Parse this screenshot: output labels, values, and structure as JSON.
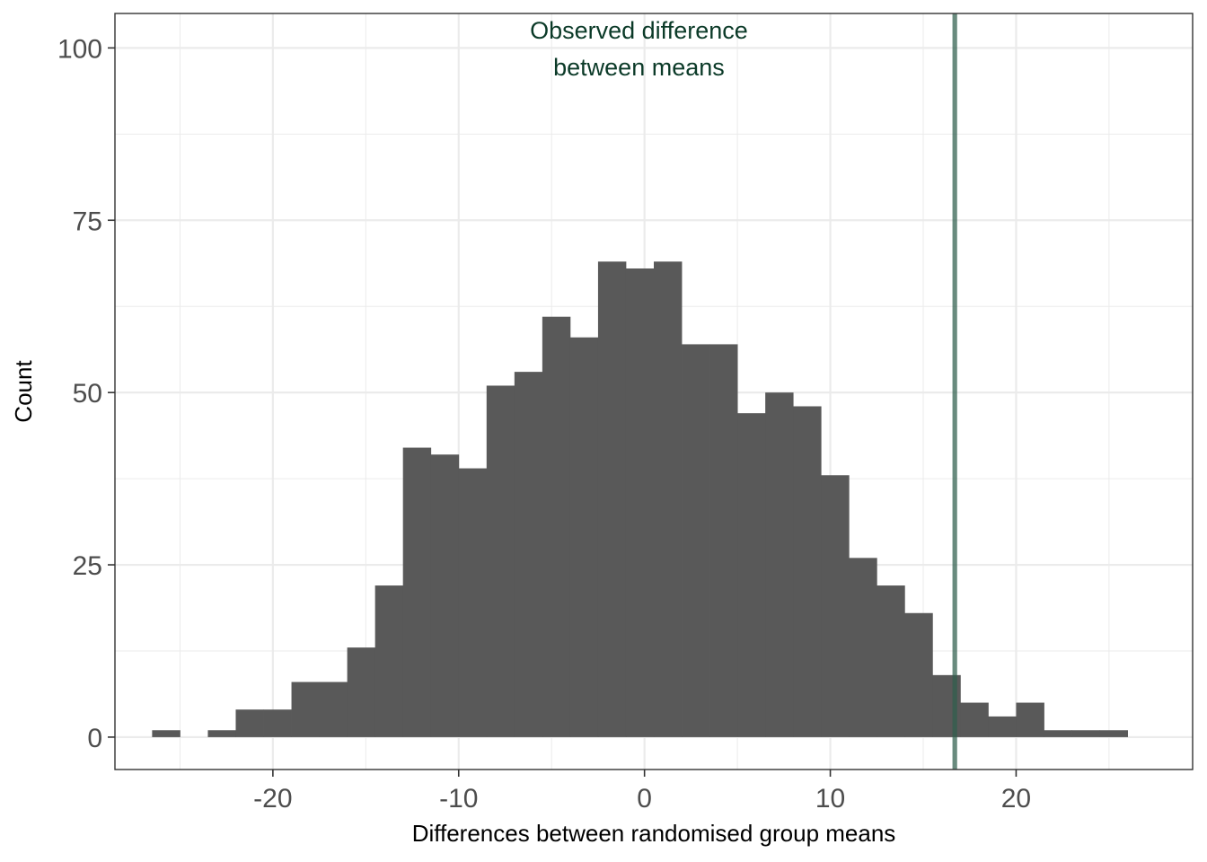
{
  "chart_data": {
    "type": "bar",
    "subtype": "histogram",
    "xlabel": "Differences between randomised group means",
    "ylabel": "Count",
    "xlim": [
      -28.5,
      29.5
    ],
    "ylim": [
      -4.7,
      105
    ],
    "x_ticks": [
      -20,
      -10,
      0,
      10,
      20
    ],
    "x_tick_labels": [
      "-20",
      "-10",
      "0",
      "10",
      "20"
    ],
    "y_ticks": [
      0,
      25,
      50,
      75,
      100
    ],
    "y_tick_labels": [
      "0",
      "25",
      "50",
      "75",
      "100"
    ],
    "grid": true,
    "bin_width": 1.5,
    "bins": [
      {
        "x0": -26.5,
        "x1": -25.0,
        "count": 1
      },
      {
        "x0": -25.0,
        "x1": -23.5,
        "count": 0
      },
      {
        "x0": -23.5,
        "x1": -22.0,
        "count": 1
      },
      {
        "x0": -22.0,
        "x1": -20.5,
        "count": 4
      },
      {
        "x0": -20.5,
        "x1": -19.0,
        "count": 4
      },
      {
        "x0": -19.0,
        "x1": -17.5,
        "count": 8
      },
      {
        "x0": -17.5,
        "x1": -16.0,
        "count": 8
      },
      {
        "x0": -16.0,
        "x1": -14.5,
        "count": 13
      },
      {
        "x0": -14.5,
        "x1": -13.0,
        "count": 22
      },
      {
        "x0": -13.0,
        "x1": -11.5,
        "count": 42
      },
      {
        "x0": -11.5,
        "x1": -10.0,
        "count": 41
      },
      {
        "x0": -10.0,
        "x1": -8.5,
        "count": 39
      },
      {
        "x0": -8.5,
        "x1": -7.0,
        "count": 51
      },
      {
        "x0": -7.0,
        "x1": -5.5,
        "count": 53
      },
      {
        "x0": -5.5,
        "x1": -4.0,
        "count": 61
      },
      {
        "x0": -4.0,
        "x1": -2.5,
        "count": 58
      },
      {
        "x0": -2.5,
        "x1": -1.0,
        "count": 69
      },
      {
        "x0": -1.0,
        "x1": 0.5,
        "count": 68
      },
      {
        "x0": 0.5,
        "x1": 2.0,
        "count": 69
      },
      {
        "x0": 2.0,
        "x1": 3.5,
        "count": 57
      },
      {
        "x0": 3.5,
        "x1": 5.0,
        "count": 57
      },
      {
        "x0": 5.0,
        "x1": 6.5,
        "count": 47
      },
      {
        "x0": 6.5,
        "x1": 8.0,
        "count": 50
      },
      {
        "x0": 8.0,
        "x1": 9.5,
        "count": 48
      },
      {
        "x0": 9.5,
        "x1": 11.0,
        "count": 38
      },
      {
        "x0": 11.0,
        "x1": 12.5,
        "count": 26
      },
      {
        "x0": 12.5,
        "x1": 14.0,
        "count": 22
      },
      {
        "x0": 14.0,
        "x1": 15.5,
        "count": 18
      },
      {
        "x0": 15.5,
        "x1": 17.0,
        "count": 9
      },
      {
        "x0": 17.0,
        "x1": 18.5,
        "count": 5
      },
      {
        "x0": 18.5,
        "x1": 20.0,
        "count": 3
      },
      {
        "x0": 20.0,
        "x1": 21.5,
        "count": 5
      },
      {
        "x0": 21.5,
        "x1": 23.0,
        "count": 1
      },
      {
        "x0": 23.0,
        "x1": 24.5,
        "count": 1
      },
      {
        "x0": 24.5,
        "x1": 26.0,
        "count": 1
      }
    ],
    "observed_difference": 16.7,
    "annotation": {
      "lines": [
        "Observed difference",
        "between means"
      ],
      "x": -0.3
    },
    "colors": {
      "bars": "#595959",
      "observed_line": "#2f5e4c",
      "annotation_text": "#0b3a28",
      "grid": "#ebebeb",
      "panel_border": "#333333"
    }
  }
}
